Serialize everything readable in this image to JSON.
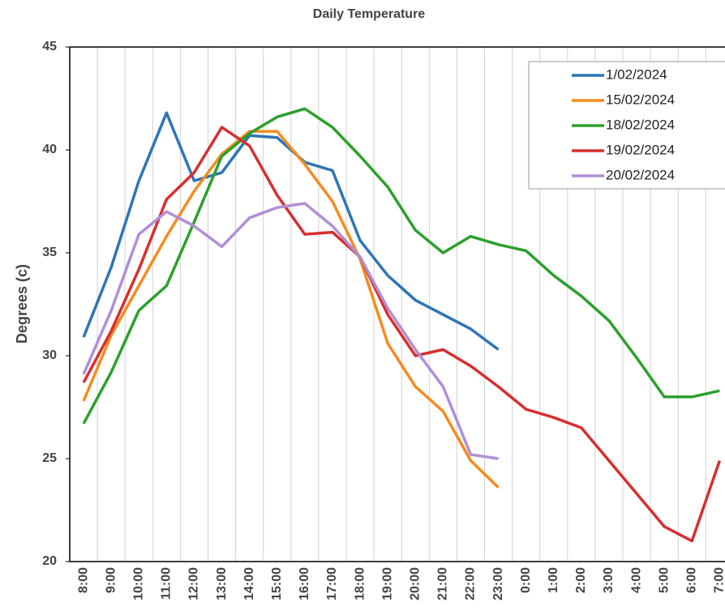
{
  "chart_data": {
    "type": "line",
    "title": "Daily Temperature",
    "y_label": "Degrees (c)",
    "categories": [
      "8:00",
      "9:00",
      "10:00",
      "11:00",
      "12:00",
      "13:00",
      "14:00",
      "15:00",
      "16:00",
      "17:00",
      "18:00",
      "19:00",
      "20:00",
      "21:00",
      "22:00",
      "23:00",
      "0:00",
      "1:00",
      "2:00",
      "3:00",
      "4:00",
      "5:00",
      "6:00",
      "7:00"
    ],
    "series": [
      {
        "name": "1/02/2024",
        "color": "#2e75b6",
        "values": [
          30.9,
          34.3,
          38.5,
          41.8,
          38.5,
          38.9,
          40.7,
          40.6,
          39.4,
          39.0,
          35.6,
          33.9,
          32.7,
          32.0,
          31.3,
          30.3,
          null,
          null,
          null,
          null,
          null,
          null,
          null,
          null
        ]
      },
      {
        "name": "15/02/2024",
        "color": "#f58b1f",
        "values": [
          27.8,
          31.0,
          33.4,
          35.8,
          38.0,
          39.8,
          40.9,
          40.9,
          39.3,
          37.5,
          34.7,
          30.6,
          28.5,
          27.3,
          24.9,
          23.6,
          null,
          null,
          null,
          null,
          null,
          null,
          null,
          null
        ]
      },
      {
        "name": "18/02/2024",
        "color": "#2ca02c",
        "values": [
          26.7,
          29.2,
          32.2,
          33.4,
          36.5,
          39.7,
          40.8,
          41.6,
          42.0,
          41.1,
          39.7,
          38.2,
          36.1,
          35.0,
          35.8,
          35.4,
          35.1,
          33.9,
          32.9,
          31.7,
          29.9,
          28.0,
          28.0,
          28.3
        ]
      },
      {
        "name": "19/02/2024",
        "color": "#d62f2f",
        "values": [
          28.7,
          31.2,
          34.2,
          37.6,
          38.9,
          41.1,
          40.2,
          37.8,
          35.9,
          36.0,
          34.8,
          32.0,
          30.0,
          30.3,
          29.5,
          28.5,
          27.4,
          27.0,
          26.5,
          24.9,
          23.3,
          21.7,
          21.0,
          24.9
        ]
      },
      {
        "name": "20/02/2024",
        "color": "#b08fd6",
        "values": [
          29.1,
          32.2,
          35.9,
          37.0,
          36.3,
          35.3,
          36.7,
          37.2,
          37.4,
          36.3,
          34.8,
          32.3,
          30.3,
          28.5,
          25.2,
          25.0,
          null,
          null,
          null,
          null,
          null,
          null,
          null,
          null
        ]
      }
    ],
    "ylim": [
      20,
      45
    ],
    "yticks": [
      20,
      25,
      30,
      35,
      40,
      45
    ],
    "grid": "x",
    "legend": "top-right"
  }
}
